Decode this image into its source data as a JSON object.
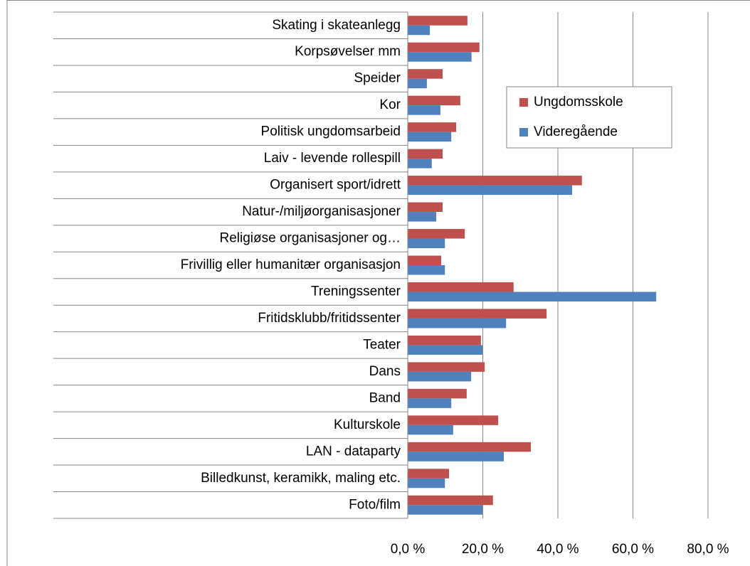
{
  "chart_data": {
    "type": "bar",
    "orientation": "horizontal",
    "categories": [
      "Skating i skateanlegg",
      "Korpsøvelser mm",
      "Speider",
      "Kor",
      "Politisk ungdomsarbeid",
      "Laiv - levende rollespill",
      "Organisert sport/idrett",
      "Natur-/miljøorganisasjoner",
      "Religiøse organisasjoner og…",
      "Frivillig eller humanitær organisasjon",
      "Treningssenter",
      "Fritidsklubb/fritidssenter",
      "Teater",
      "Dans",
      "Band",
      "Kulturskole",
      "LAN - dataparty",
      "Billedkunst, keramikk, maling etc.",
      "Foto/film"
    ],
    "series": [
      {
        "name": "Ungdomsskole",
        "color": "#c0504d",
        "values": [
          15.9,
          19.1,
          9.3,
          14.0,
          12.9,
          9.3,
          46.4,
          9.3,
          15.2,
          8.9,
          28.2,
          37.0,
          19.5,
          20.5,
          15.7,
          24.1,
          32.8,
          11.0,
          22.7
        ]
      },
      {
        "name": "Videregående",
        "color": "#4f81bd",
        "values": [
          5.9,
          17.0,
          5.1,
          8.7,
          11.6,
          6.4,
          43.8,
          7.6,
          9.9,
          9.9,
          66.2,
          26.2,
          19.9,
          16.9,
          11.6,
          12.1,
          25.6,
          9.9,
          19.9
        ]
      }
    ],
    "xlim": [
      0,
      80
    ],
    "xticks": [
      {
        "value": 0,
        "label": "0,0 %"
      },
      {
        "value": 20,
        "label": "20,0 %"
      },
      {
        "value": 40,
        "label": "40,0 %"
      },
      {
        "value": 60,
        "label": "60,0 %"
      },
      {
        "value": 80,
        "label": "80,0 %"
      }
    ],
    "grid": true,
    "legend": "right"
  }
}
